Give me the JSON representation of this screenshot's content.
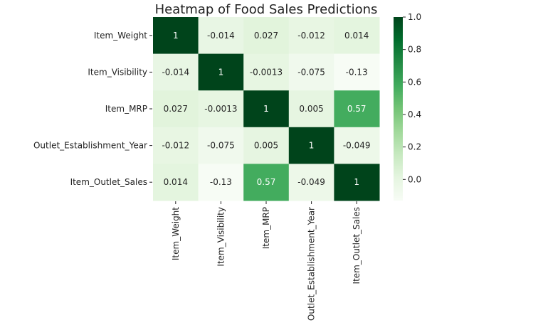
{
  "chart_data": {
    "type": "heatmap",
    "title": "Heatmap of Food Sales Predictions",
    "row_labels": [
      "Item_Weight",
      "Item_Visibility",
      "Item_MRP",
      "Outlet_Establishment_Year",
      "Item_Outlet_Sales"
    ],
    "col_labels": [
      "Item_Weight",
      "Item_Visibility",
      "Item_MRP",
      "Outlet_Establishment_Year",
      "Item_Outlet_Sales"
    ],
    "values": [
      [
        1,
        -0.014,
        0.027,
        -0.012,
        0.014
      ],
      [
        -0.014,
        1,
        -0.0013,
        -0.075,
        -0.13
      ],
      [
        0.027,
        -0.0013,
        1,
        0.005,
        0.57
      ],
      [
        -0.012,
        -0.075,
        0.005,
        1,
        -0.049
      ],
      [
        0.014,
        -0.13,
        0.57,
        -0.049,
        1
      ]
    ],
    "value_labels": [
      [
        "1",
        "-0.014",
        "0.027",
        "-0.012",
        "0.014"
      ],
      [
        "-0.014",
        "1",
        "-0.0013",
        "-0.075",
        "-0.13"
      ],
      [
        "0.027",
        "-0.0013",
        "1",
        "0.005",
        "0.57"
      ],
      [
        "-0.012",
        "-0.075",
        "0.005",
        "1",
        "-0.049"
      ],
      [
        "0.014",
        "-0.13",
        "0.57",
        "-0.049",
        "1"
      ]
    ],
    "colormap": "Greens",
    "vmin": -0.13,
    "vmax": 1,
    "colorbar_ticks": [
      "0.0",
      "0.2",
      "0.4",
      "0.6",
      "0.8",
      "1.0"
    ],
    "colorbar_tick_values": [
      0,
      0.2,
      0.4,
      0.6,
      0.8,
      1.0
    ],
    "colors": {
      "low": "#f7fcf5",
      "high": "#00441b",
      "text_dark": "#262626",
      "text_light": "#ffffff"
    }
  }
}
